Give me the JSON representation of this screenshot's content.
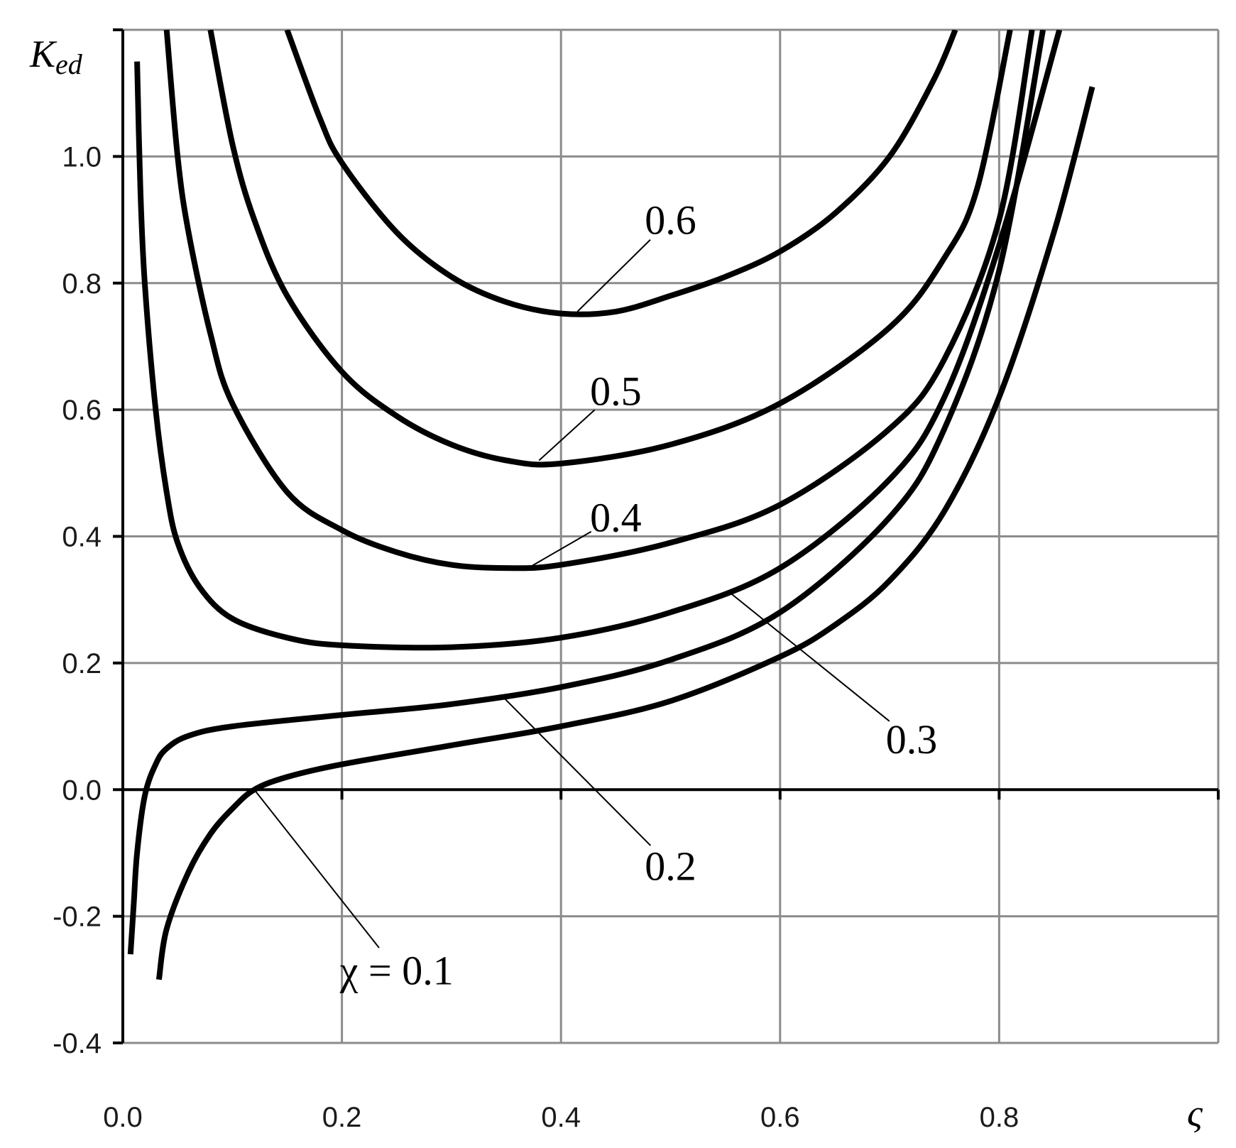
{
  "chart_data": {
    "type": "line",
    "xlabel": "ς",
    "ylabel_main": "K",
    "ylabel_sub": "ed",
    "xlim": [
      0,
      1
    ],
    "ylim": [
      -0.4,
      1.2
    ],
    "x_ticks": [
      "0.0",
      "0.2",
      "0.4",
      "0.6",
      "0.8"
    ],
    "x_tick_values": [
      0,
      0.2,
      0.4,
      0.6,
      0.8
    ],
    "y_ticks": [
      "-0.4",
      "-0.2",
      "0.0",
      "0.2",
      "0.4",
      "0.6",
      "0.8",
      "1.0"
    ],
    "y_tick_values": [
      -0.4,
      -0.2,
      0,
      0.2,
      0.4,
      0.6,
      0.8,
      1.0
    ],
    "grid": true,
    "series": [
      {
        "name": "χ = 0.1",
        "label": "χ = 0.1",
        "label_at": [
          0.25,
          -0.285
        ],
        "pointer_to": [
          0.12,
          0.0
        ],
        "points": [
          [
            0.033,
            -0.3
          ],
          [
            0.04,
            -0.22
          ],
          [
            0.06,
            -0.13
          ],
          [
            0.08,
            -0.07
          ],
          [
            0.1,
            -0.03
          ],
          [
            0.12,
            0.0
          ],
          [
            0.15,
            0.02
          ],
          [
            0.2,
            0.04
          ],
          [
            0.3,
            0.07
          ],
          [
            0.4,
            0.1
          ],
          [
            0.5,
            0.14
          ],
          [
            0.6,
            0.21
          ],
          [
            0.65,
            0.26
          ],
          [
            0.7,
            0.33
          ],
          [
            0.75,
            0.44
          ],
          [
            0.8,
            0.62
          ],
          [
            0.85,
            0.88
          ],
          [
            0.885,
            1.11
          ]
        ]
      },
      {
        "name": "0.2",
        "label": "0.2",
        "label_at": [
          0.5,
          -0.12
        ],
        "pointer_to": [
          0.345,
          0.15
        ],
        "points": [
          [
            0.007,
            -0.26
          ],
          [
            0.01,
            -0.18
          ],
          [
            0.013,
            -0.1
          ],
          [
            0.02,
            -0.01
          ],
          [
            0.03,
            0.04
          ],
          [
            0.04,
            0.065
          ],
          [
            0.06,
            0.085
          ],
          [
            0.1,
            0.1
          ],
          [
            0.2,
            0.118
          ],
          [
            0.3,
            0.135
          ],
          [
            0.4,
            0.162
          ],
          [
            0.5,
            0.205
          ],
          [
            0.6,
            0.28
          ],
          [
            0.7,
            0.43
          ],
          [
            0.75,
            0.57
          ],
          [
            0.8,
            0.82
          ],
          [
            0.84,
            1.2
          ]
        ]
      },
      {
        "name": "0.3",
        "label": "0.3",
        "label_at": [
          0.72,
          0.08
        ],
        "pointer_to": [
          0.555,
          0.31
        ],
        "points": [
          [
            0.013,
            1.15
          ],
          [
            0.016,
            0.95
          ],
          [
            0.02,
            0.8
          ],
          [
            0.03,
            0.6
          ],
          [
            0.04,
            0.47
          ],
          [
            0.05,
            0.39
          ],
          [
            0.07,
            0.32
          ],
          [
            0.1,
            0.27
          ],
          [
            0.15,
            0.24
          ],
          [
            0.2,
            0.228
          ],
          [
            0.3,
            0.225
          ],
          [
            0.4,
            0.24
          ],
          [
            0.5,
            0.28
          ],
          [
            0.6,
            0.35
          ],
          [
            0.7,
            0.49
          ],
          [
            0.75,
            0.62
          ],
          [
            0.8,
            0.86
          ],
          [
            0.855,
            1.2
          ]
        ]
      },
      {
        "name": "0.4",
        "label": "0.4",
        "label_at": [
          0.45,
          0.43
        ],
        "pointer_to": [
          0.37,
          0.35
        ],
        "points": [
          [
            0.04,
            1.2
          ],
          [
            0.05,
            1.0
          ],
          [
            0.06,
            0.88
          ],
          [
            0.08,
            0.72
          ],
          [
            0.1,
            0.61
          ],
          [
            0.15,
            0.47
          ],
          [
            0.2,
            0.41
          ],
          [
            0.25,
            0.375
          ],
          [
            0.3,
            0.355
          ],
          [
            0.35,
            0.35
          ],
          [
            0.4,
            0.355
          ],
          [
            0.5,
            0.39
          ],
          [
            0.6,
            0.45
          ],
          [
            0.7,
            0.57
          ],
          [
            0.75,
            0.68
          ],
          [
            0.8,
            0.9
          ],
          [
            0.83,
            1.2
          ]
        ]
      },
      {
        "name": "0.5",
        "label": "0.5",
        "label_at": [
          0.45,
          0.63
        ],
        "pointer_to": [
          0.38,
          0.52
        ],
        "points": [
          [
            0.08,
            1.2
          ],
          [
            0.1,
            1.02
          ],
          [
            0.12,
            0.9
          ],
          [
            0.15,
            0.78
          ],
          [
            0.2,
            0.66
          ],
          [
            0.25,
            0.59
          ],
          [
            0.3,
            0.545
          ],
          [
            0.35,
            0.52
          ],
          [
            0.4,
            0.515
          ],
          [
            0.5,
            0.545
          ],
          [
            0.6,
            0.61
          ],
          [
            0.7,
            0.73
          ],
          [
            0.75,
            0.84
          ],
          [
            0.78,
            0.95
          ],
          [
            0.81,
            1.2
          ]
        ]
      },
      {
        "name": "0.6",
        "label": "0.6",
        "label_at": [
          0.5,
          0.9
        ],
        "pointer_to": [
          0.415,
          0.755
        ],
        "points": [
          [
            0.15,
            1.2
          ],
          [
            0.18,
            1.06
          ],
          [
            0.2,
            0.99
          ],
          [
            0.25,
            0.88
          ],
          [
            0.3,
            0.81
          ],
          [
            0.35,
            0.77
          ],
          [
            0.4,
            0.752
          ],
          [
            0.45,
            0.755
          ],
          [
            0.5,
            0.78
          ],
          [
            0.55,
            0.81
          ],
          [
            0.6,
            0.85
          ],
          [
            0.65,
            0.91
          ],
          [
            0.7,
            1.0
          ],
          [
            0.74,
            1.12
          ],
          [
            0.76,
            1.2
          ]
        ]
      }
    ]
  }
}
